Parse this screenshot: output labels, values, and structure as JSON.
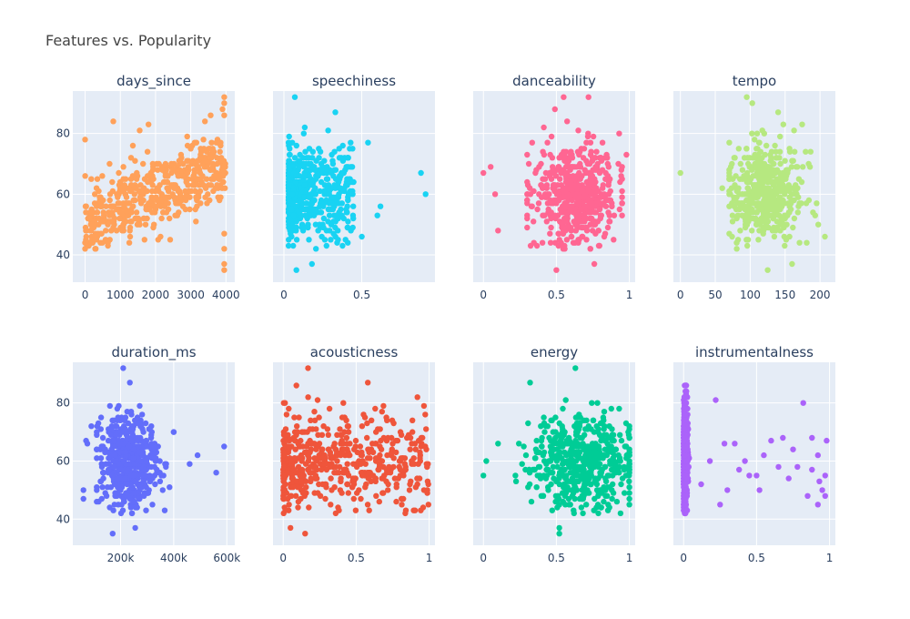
{
  "title": "Features vs. Popularity",
  "colors": {
    "days_since": "#FFA15A",
    "speechiness": "#19D3F3",
    "danceability": "#FF6692",
    "tempo": "#B6E880",
    "duration_ms": "#636EFA",
    "acousticness": "#EF553B",
    "energy": "#00CC96",
    "instrumentalness": "#AB63FA"
  },
  "chart_data": [
    {
      "type": "scatter",
      "title": "days_since",
      "xlim": [
        -350,
        4250
      ],
      "ylim": [
        31,
        94
      ],
      "xticks": [
        0,
        1000,
        2000,
        3000,
        4000
      ],
      "xtick_labels": [
        "0",
        "1000",
        "2000",
        "3000",
        "4000"
      ],
      "yticks": [
        40,
        60,
        80
      ],
      "ytick_labels": [
        "40",
        "60",
        "80"
      ],
      "x_range": [
        0,
        4000
      ],
      "y_center": [
        50,
        70
      ],
      "y_spread": 6,
      "outliers": [
        [
          3950,
          92
        ],
        [
          3950,
          90
        ],
        [
          3900,
          88
        ],
        [
          3950,
          86
        ],
        [
          3950,
          47
        ],
        [
          3950,
          42
        ],
        [
          3950,
          37
        ],
        [
          3950,
          35
        ],
        [
          1800,
          83
        ],
        [
          1550,
          81
        ],
        [
          0,
          78
        ],
        [
          0,
          42
        ],
        [
          0,
          44
        ],
        [
          800,
          84
        ]
      ]
    },
    {
      "type": "scatter",
      "title": "speechiness",
      "xlim": [
        -0.07,
        0.97
      ],
      "ylim": [
        31,
        94
      ],
      "xticks": [
        0,
        0.5
      ],
      "xtick_labels": [
        "0",
        "0.5"
      ],
      "yticks": [
        40,
        60,
        80
      ],
      "ytick_labels": [
        "40",
        "60",
        "80"
      ],
      "x_range": [
        0.025,
        0.45
      ],
      "y_center": [
        60,
        60
      ],
      "y_spread": 8,
      "outliers": [
        [
          0.07,
          92
        ],
        [
          0.33,
          87
        ],
        [
          0.54,
          77
        ],
        [
          0.88,
          67
        ],
        [
          0.91,
          60
        ],
        [
          0.62,
          56
        ],
        [
          0.6,
          53
        ],
        [
          0.5,
          46
        ],
        [
          0.08,
          35
        ],
        [
          0.18,
          37
        ]
      ]
    },
    {
      "type": "scatter",
      "title": "danceability",
      "xlim": [
        -0.07,
        1.04
      ],
      "ylim": [
        31,
        94
      ],
      "xticks": [
        0,
        0.5,
        1
      ],
      "xtick_labels": [
        "0",
        "0.5",
        "1"
      ],
      "yticks": [
        40,
        60,
        80
      ],
      "ytick_labels": [
        "40",
        "60",
        "80"
      ],
      "x_range": [
        0.3,
        0.95
      ],
      "y_center": [
        60,
        60
      ],
      "y_spread": 8,
      "outliers": [
        [
          0.0,
          67
        ],
        [
          0.05,
          69
        ],
        [
          0.55,
          92
        ],
        [
          0.72,
          92
        ],
        [
          0.49,
          88
        ],
        [
          0.98,
          73
        ],
        [
          0.5,
          35
        ],
        [
          0.76,
          37
        ],
        [
          0.1,
          48
        ],
        [
          0.08,
          60
        ],
        [
          0.93,
          80
        ]
      ]
    },
    {
      "type": "scatter",
      "title": "tempo",
      "xlim": [
        -10,
        222
      ],
      "ylim": [
        31,
        94
      ],
      "xticks": [
        0,
        50,
        100,
        150,
        200
      ],
      "xtick_labels": [
        "0",
        "50",
        "100",
        "150",
        "200"
      ],
      "yticks": [
        40,
        60,
        80
      ],
      "ytick_labels": [
        "40",
        "60",
        "80"
      ],
      "x_range": [
        70,
        200
      ],
      "y_center": [
        60,
        60
      ],
      "y_spread": 8,
      "outliers": [
        [
          0,
          67
        ],
        [
          95,
          92
        ],
        [
          103,
          90
        ],
        [
          140,
          87
        ],
        [
          125,
          35
        ],
        [
          207,
          46
        ],
        [
          160,
          37
        ],
        [
          60,
          62
        ]
      ]
    },
    {
      "type": "scatter",
      "title": "duration_ms",
      "xlim": [
        20000,
        630000
      ],
      "ylim": [
        31,
        94
      ],
      "xticks": [
        200000,
        400000,
        600000
      ],
      "xtick_labels": [
        "200k",
        "400k",
        "600k"
      ],
      "yticks": [
        40,
        60,
        80
      ],
      "ytick_labels": [
        "40",
        "60",
        "80"
      ],
      "x_range": [
        110000,
        400000
      ],
      "y_center": [
        60,
        60
      ],
      "y_spread": 8,
      "outliers": [
        [
          560000,
          56
        ],
        [
          590000,
          65
        ],
        [
          490000,
          62
        ],
        [
          460000,
          59
        ],
        [
          210000,
          92
        ],
        [
          235000,
          87
        ],
        [
          170000,
          35
        ],
        [
          255000,
          37
        ],
        [
          60000,
          50
        ],
        [
          60000,
          47
        ],
        [
          75000,
          66
        ],
        [
          70000,
          67
        ],
        [
          90000,
          72
        ]
      ]
    },
    {
      "type": "scatter",
      "title": "acousticness",
      "xlim": [
        -0.07,
        1.04
      ],
      "ylim": [
        31,
        94
      ],
      "xticks": [
        0,
        0.5,
        1
      ],
      "xtick_labels": [
        "0",
        "0.5",
        "1"
      ],
      "yticks": [
        40,
        60,
        80
      ],
      "ytick_labels": [
        "40",
        "60",
        "80"
      ],
      "x_range": [
        0.0,
        1.0
      ],
      "y_center": [
        60,
        60
      ],
      "y_spread": 8,
      "outliers": [
        [
          0.17,
          92
        ],
        [
          0.58,
          87
        ],
        [
          0.09,
          86
        ],
        [
          0.05,
          37
        ],
        [
          0.15,
          35
        ]
      ]
    },
    {
      "type": "scatter",
      "title": "energy",
      "xlim": [
        -0.07,
        1.04
      ],
      "ylim": [
        31,
        94
      ],
      "xticks": [
        0,
        0.5,
        1
      ],
      "xtick_labels": [
        "0",
        "0.5",
        "1"
      ],
      "yticks": [
        40,
        60,
        80
      ],
      "ytick_labels": [
        "40",
        "60",
        "80"
      ],
      "x_range": [
        0.1,
        1.0
      ],
      "y_center": [
        60,
        60
      ],
      "y_spread": 8,
      "outliers": [
        [
          0.0,
          55
        ],
        [
          0.02,
          60
        ],
        [
          0.63,
          92
        ],
        [
          0.32,
          87
        ],
        [
          0.52,
          37
        ],
        [
          0.52,
          35
        ]
      ]
    },
    {
      "type": "scatter",
      "title": "instrumentalness",
      "xlim": [
        -0.07,
        1.04
      ],
      "ylim": [
        31,
        94
      ],
      "xticks": [
        0,
        0.5,
        1
      ],
      "xtick_labels": [
        "0",
        "0.5",
        "1"
      ],
      "yticks": [
        40,
        60,
        80
      ],
      "ytick_labels": [
        "40",
        "60",
        "80"
      ],
      "x_range": [
        0.0,
        0.1
      ],
      "y_center": [
        60,
        60
      ],
      "y_spread": 8,
      "outliers": [
        [
          0.82,
          80
        ],
        [
          0.22,
          81
        ],
        [
          0.68,
          68
        ],
        [
          0.35,
          66
        ],
        [
          0.6,
          67
        ],
        [
          0.88,
          68
        ],
        [
          0.98,
          67
        ],
        [
          0.75,
          64
        ],
        [
          0.78,
          58
        ],
        [
          0.92,
          62
        ],
        [
          0.97,
          55
        ],
        [
          0.5,
          55
        ],
        [
          0.45,
          55
        ],
        [
          0.38,
          57
        ],
        [
          0.3,
          50
        ],
        [
          0.25,
          45
        ],
        [
          0.52,
          50
        ],
        [
          0.72,
          54
        ],
        [
          0.85,
          48
        ],
        [
          0.92,
          45
        ],
        [
          0.95,
          50
        ],
        [
          0.42,
          60
        ],
        [
          0.55,
          62
        ],
        [
          0.18,
          60
        ],
        [
          0.12,
          52
        ],
        [
          0.28,
          66
        ],
        [
          0.65,
          58
        ],
        [
          0.88,
          57
        ],
        [
          0.93,
          53
        ],
        [
          0.97,
          48
        ]
      ]
    }
  ]
}
